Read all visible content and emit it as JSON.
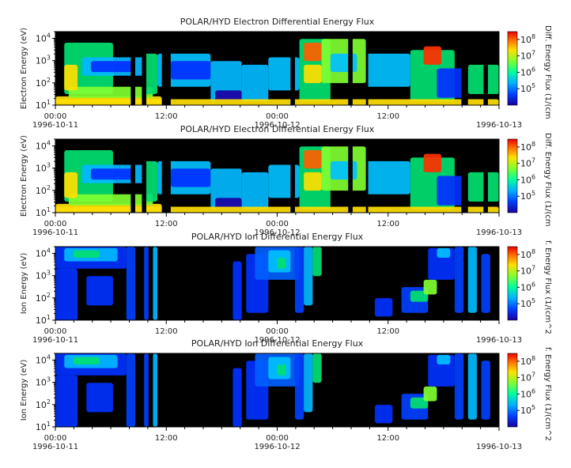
{
  "chart_data": [
    {
      "type": "heatmap",
      "title": "POLAR/HYD  Electron Differential Energy Flux",
      "ylabel": "Electron Energy (eV)",
      "colorbar_label": "Diff. Energy Flux (1/(cm",
      "yscale": "log",
      "ylim": [
        10,
        20000
      ],
      "yticks": [
        "10^1",
        "10^2",
        "10^3",
        "10^4"
      ],
      "xticks": [
        {
          "time": "00:00",
          "date": "1996-10-11"
        },
        {
          "time": "12:00",
          "date": ""
        },
        {
          "time": "00:00",
          "date": "1996-10-12"
        },
        {
          "time": "12:00",
          "date": ""
        },
        {
          "time": "",
          "date": "1996-10-13"
        }
      ],
      "colorbar_ticks": [
        "10^5",
        "10^6",
        "10^7",
        "10^8"
      ],
      "colorbar_range": [
        10000,
        300000000
      ]
    },
    {
      "type": "heatmap",
      "title": "POLAR/HYD  Electron Differential Energy Flux",
      "ylabel": "Electron Energy (eV)",
      "colorbar_label": "Diff. Energy Flux (1/(cm",
      "yscale": "log",
      "ylim": [
        10,
        20000
      ],
      "yticks": [
        "10^1",
        "10^2",
        "10^3",
        "10^4"
      ],
      "xticks": [
        {
          "time": "00:00",
          "date": "1996-10-11"
        },
        {
          "time": "12:00",
          "date": ""
        },
        {
          "time": "00:00",
          "date": "1996-10-12"
        },
        {
          "time": "12:00",
          "date": ""
        },
        {
          "time": "",
          "date": "1996-10-13"
        }
      ],
      "colorbar_ticks": [
        "10^5",
        "10^6",
        "10^7",
        "10^8"
      ],
      "colorbar_range": [
        10000,
        300000000
      ]
    },
    {
      "type": "heatmap",
      "title": "POLAR/HYD  Ion Differential Energy Flux",
      "ylabel": "Ion Energy (eV)",
      "colorbar_label": "f. Energy Flux (1/(cm^2",
      "yscale": "log",
      "ylim": [
        10,
        20000
      ],
      "yticks": [
        "10^1",
        "10^2",
        "10^3",
        "10^4"
      ],
      "xticks": [
        {
          "time": "00:00",
          "date": "1996-10-11"
        },
        {
          "time": "12:00",
          "date": ""
        },
        {
          "time": "00:00",
          "date": "1996-10-12"
        },
        {
          "time": "12:00",
          "date": ""
        },
        {
          "time": "",
          "date": "1996-10-13"
        }
      ],
      "colorbar_ticks": [
        "10^5",
        "10^6",
        "10^7",
        "10^8"
      ],
      "colorbar_range": [
        10000,
        300000000
      ]
    },
    {
      "type": "heatmap",
      "title": "POLAR/HYD  Ion Differential Energy Flux",
      "ylabel": "Ion Energy (eV)",
      "colorbar_label": "f. Energy Flux (1/(cm^2",
      "yscale": "log",
      "ylim": [
        10,
        20000
      ],
      "yticks": [
        "10^1",
        "10^2",
        "10^3",
        "10^4"
      ],
      "xticks": [
        {
          "time": "00:00",
          "date": "1996-10-11"
        },
        {
          "time": "12:00",
          "date": ""
        },
        {
          "time": "00:00",
          "date": "1996-10-12"
        },
        {
          "time": "12:00",
          "date": ""
        },
        {
          "time": "",
          "date": "1996-10-13"
        }
      ],
      "colorbar_ticks": [
        "10^5",
        "10^6",
        "10^7",
        "10^8"
      ],
      "colorbar_range": [
        10000,
        300000000
      ]
    }
  ]
}
